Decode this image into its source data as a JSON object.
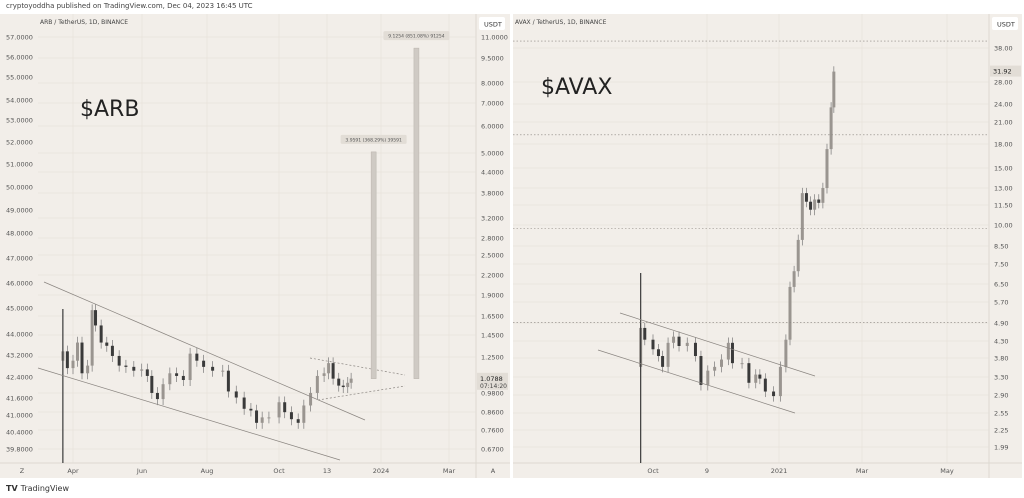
{
  "publisher_line": "cryptoyoddha published on TradingView.com, Dec 04, 2023 16:45 UTC",
  "footer": {
    "logo": "TV",
    "brand": "TradingView"
  },
  "colors": {
    "background": "#f2eee9",
    "candle": "#3a3a3a",
    "grid": "#e4dfd8",
    "trendline": "#8a8580",
    "measure": "#cfcac4"
  },
  "chart_data": [
    {
      "type": "candlestick",
      "symbol_title": "ARB / TetherUS, 1D, BINANCE",
      "overlay_text": "$ARB",
      "currency": "USDT",
      "scale": "log",
      "left_axis_ticks": [
        "57.0000",
        "56.0000",
        "55.0000",
        "54.0000",
        "53.0000",
        "52.0000",
        "51.0000",
        "50.0000",
        "49.0000",
        "48.0000",
        "47.0000",
        "46.0000",
        "45.0000",
        "44.0000",
        "43.2000",
        "42.4000",
        "41.6000",
        "41.0000",
        "40.4000",
        "39.8000"
      ],
      "right_axis_ticks": [
        "11.0000",
        "9.5000",
        "8.0000",
        "7.0000",
        "6.0000",
        "5.0000",
        "4.4000",
        "3.8000",
        "3.2000",
        "2.8000",
        "2.5000",
        "2.2000",
        "1.9000",
        "1.6500",
        "1.4500",
        "1.2500",
        "0.9800",
        "0.8600",
        "0.7600",
        "0.6700"
      ],
      "x_ticks": [
        "Z",
        "Apr",
        "Jun",
        "Aug",
        "Oct",
        "13",
        "2024",
        "Mar",
        "A"
      ],
      "last_price": "1.0788",
      "countdown": "07:14:20",
      "measurements": [
        {
          "label": "3.9591 (368.29%) 39591",
          "from": 1.08,
          "to": 5.04,
          "date": "2023-12-24"
        },
        {
          "label": "9.1254 (851.08%) 91254",
          "from": 1.08,
          "to": 10.2,
          "date": "2024-01-31"
        }
      ],
      "series": [
        [
          "2023-03-23",
          1.3
        ],
        [
          "2023-03-27",
          1.16
        ],
        [
          "2023-04-01",
          1.22
        ],
        [
          "2023-04-05",
          1.38
        ],
        [
          "2023-04-09",
          1.12
        ],
        [
          "2023-04-14",
          1.18
        ],
        [
          "2023-04-18",
          1.72
        ],
        [
          "2023-04-21",
          1.55
        ],
        [
          "2023-04-26",
          1.38
        ],
        [
          "2023-05-01",
          1.35
        ],
        [
          "2023-05-06",
          1.26
        ],
        [
          "2023-05-12",
          1.18
        ],
        [
          "2023-05-18",
          1.17
        ],
        [
          "2023-05-25",
          1.14
        ],
        [
          "2023-06-01",
          1.15
        ],
        [
          "2023-06-06",
          1.1
        ],
        [
          "2023-06-10",
          0.98
        ],
        [
          "2023-06-15",
          0.94
        ],
        [
          "2023-06-20",
          1.04
        ],
        [
          "2023-06-26",
          1.12
        ],
        [
          "2023-07-02",
          1.1
        ],
        [
          "2023-07-08",
          1.07
        ],
        [
          "2023-07-14",
          1.28
        ],
        [
          "2023-07-20",
          1.22
        ],
        [
          "2023-07-26",
          1.17
        ],
        [
          "2023-08-03",
          1.14
        ],
        [
          "2023-08-12",
          1.14
        ],
        [
          "2023-08-17",
          0.99
        ],
        [
          "2023-08-24",
          0.95
        ],
        [
          "2023-08-31",
          0.88
        ],
        [
          "2023-09-06",
          0.87
        ],
        [
          "2023-09-11",
          0.8
        ],
        [
          "2023-09-16",
          0.83
        ],
        [
          "2023-09-22",
          0.83
        ],
        [
          "2023-10-01",
          0.92
        ],
        [
          "2023-10-06",
          0.86
        ],
        [
          "2023-10-12",
          0.82
        ],
        [
          "2023-10-18",
          0.8
        ],
        [
          "2023-10-23",
          0.9
        ],
        [
          "2023-10-29",
          0.98
        ],
        [
          "2023-11-04",
          1.1
        ],
        [
          "2023-11-10",
          1.12
        ],
        [
          "2023-11-14",
          1.2
        ],
        [
          "2023-11-18",
          1.08
        ],
        [
          "2023-11-23",
          1.03
        ],
        [
          "2023-11-27",
          1.02
        ],
        [
          "2023-12-01",
          1.05
        ],
        [
          "2023-12-04",
          1.08
        ]
      ]
    },
    {
      "type": "candlestick",
      "symbol_title": "AVAX / TetherUS, 1D, BINANCE",
      "overlay_text": "$AVAX",
      "currency": "USDT",
      "scale": "log",
      "right_axis_ticks": [
        "38.00",
        "28.00",
        "24.00",
        "21.00",
        "18.00",
        "15.00",
        "13.00",
        "11.50",
        "10.00",
        "8.50",
        "7.50",
        "6.50",
        "5.70",
        "4.90",
        "4.30",
        "3.80",
        "3.30",
        "2.90",
        "2.55",
        "2.25",
        "1.99"
      ],
      "x_ticks": [
        "Oct",
        "9",
        "2021",
        "Mar",
        "May"
      ],
      "last_price": "31.92",
      "horizontal_levels": [
        40,
        20,
        10,
        5
      ],
      "series": [
        [
          "2020-09-22",
          4.8
        ],
        [
          "2020-09-25",
          4.4
        ],
        [
          "2020-10-01",
          4.1
        ],
        [
          "2020-10-05",
          3.9
        ],
        [
          "2020-10-08",
          3.6
        ],
        [
          "2020-10-12",
          4.3
        ],
        [
          "2020-10-16",
          4.5
        ],
        [
          "2020-10-20",
          4.2
        ],
        [
          "2020-10-26",
          4.3
        ],
        [
          "2020-11-01",
          3.9
        ],
        [
          "2020-11-05",
          3.15
        ],
        [
          "2020-11-10",
          3.5
        ],
        [
          "2020-11-15",
          3.6
        ],
        [
          "2020-11-20",
          3.8
        ],
        [
          "2020-11-25",
          4.3
        ],
        [
          "2020-11-28",
          3.7
        ],
        [
          "2020-12-05",
          3.7
        ],
        [
          "2020-12-10",
          3.2
        ],
        [
          "2020-12-15",
          3.4
        ],
        [
          "2020-12-18",
          3.3
        ],
        [
          "2020-12-22",
          3.0
        ],
        [
          "2020-12-28",
          2.9
        ],
        [
          "2021-01-02",
          3.6
        ],
        [
          "2021-01-06",
          4.4
        ],
        [
          "2021-01-09",
          6.5
        ],
        [
          "2021-01-12",
          7.3
        ],
        [
          "2021-01-15",
          9.2
        ],
        [
          "2021-01-18",
          13.0
        ],
        [
          "2021-01-21",
          12.2
        ],
        [
          "2021-01-24",
          11.5
        ],
        [
          "2021-01-27",
          12.4
        ],
        [
          "2021-01-30",
          12.1
        ],
        [
          "2021-02-02",
          13.5
        ],
        [
          "2021-02-05",
          18.0
        ],
        [
          "2021-02-08",
          24.5
        ],
        [
          "2021-02-10",
          31.92
        ]
      ]
    }
  ]
}
